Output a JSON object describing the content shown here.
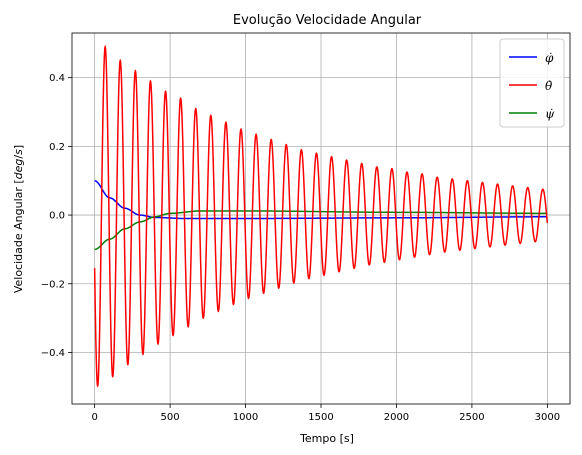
{
  "chart_data": {
    "type": "line",
    "title": "Evolução Velocidade Angular",
    "xlabel": "Tempo [s]",
    "ylabel": "Velocidade Angular [deg/s]",
    "xlim": [
      -150,
      3150
    ],
    "ylim": [
      -0.55,
      0.53
    ],
    "x_ticks": [
      0,
      500,
      1000,
      1500,
      2000,
      2500,
      3000
    ],
    "y_ticks": [
      -0.4,
      -0.2,
      0.0,
      0.2,
      0.4
    ],
    "x_tick_labels": [
      "0",
      "500",
      "1000",
      "1500",
      "2000",
      "2500",
      "3000"
    ],
    "y_tick_labels": [
      "−0.4",
      "−0.2",
      "0.0",
      "0.2",
      "0.4"
    ],
    "grid": true,
    "legend_position": "top-right",
    "series": [
      {
        "name": "φ̇",
        "color": "#0000ff",
        "description_points": [
          [
            0,
            0.1
          ],
          [
            100,
            0.05
          ],
          [
            200,
            0.02
          ],
          [
            300,
            0.0
          ],
          [
            400,
            -0.007
          ],
          [
            600,
            -0.01
          ],
          [
            1000,
            -0.01
          ],
          [
            2000,
            -0.008
          ],
          [
            3000,
            -0.005
          ]
        ]
      },
      {
        "name": "θ̇",
        "color": "#ff0000",
        "initial_value": -0.5,
        "first_peak": 0.49,
        "period_s": 100,
        "peaks": [
          [
            70,
            0.49
          ],
          [
            170,
            0.45
          ],
          [
            270,
            0.42
          ],
          [
            370,
            0.39
          ],
          [
            470,
            0.36
          ],
          [
            570,
            0.34
          ],
          [
            670,
            0.31
          ],
          [
            770,
            0.29
          ],
          [
            870,
            0.27
          ],
          [
            970,
            0.25
          ],
          [
            1070,
            0.235
          ],
          [
            1170,
            0.22
          ],
          [
            1270,
            0.205
          ],
          [
            1370,
            0.19
          ],
          [
            1470,
            0.18
          ],
          [
            1570,
            0.17
          ],
          [
            1670,
            0.16
          ],
          [
            1770,
            0.15
          ],
          [
            1870,
            0.14
          ],
          [
            1970,
            0.135
          ],
          [
            2070,
            0.125
          ],
          [
            2170,
            0.12
          ],
          [
            2270,
            0.11
          ],
          [
            2370,
            0.105
          ],
          [
            2470,
            0.1
          ],
          [
            2570,
            0.095
          ],
          [
            2670,
            0.09
          ],
          [
            2770,
            0.085
          ],
          [
            2870,
            0.08
          ],
          [
            2970,
            0.075
          ]
        ],
        "end_value": 0.07
      },
      {
        "name": "ψ̇",
        "color": "#008000",
        "description_points": [
          [
            0,
            -0.1
          ],
          [
            100,
            -0.07
          ],
          [
            200,
            -0.04
          ],
          [
            300,
            -0.02
          ],
          [
            400,
            -0.005
          ],
          [
            500,
            0.005
          ],
          [
            700,
            0.012
          ],
          [
            1000,
            0.012
          ],
          [
            2000,
            0.008
          ],
          [
            3000,
            0.005
          ]
        ]
      }
    ]
  }
}
